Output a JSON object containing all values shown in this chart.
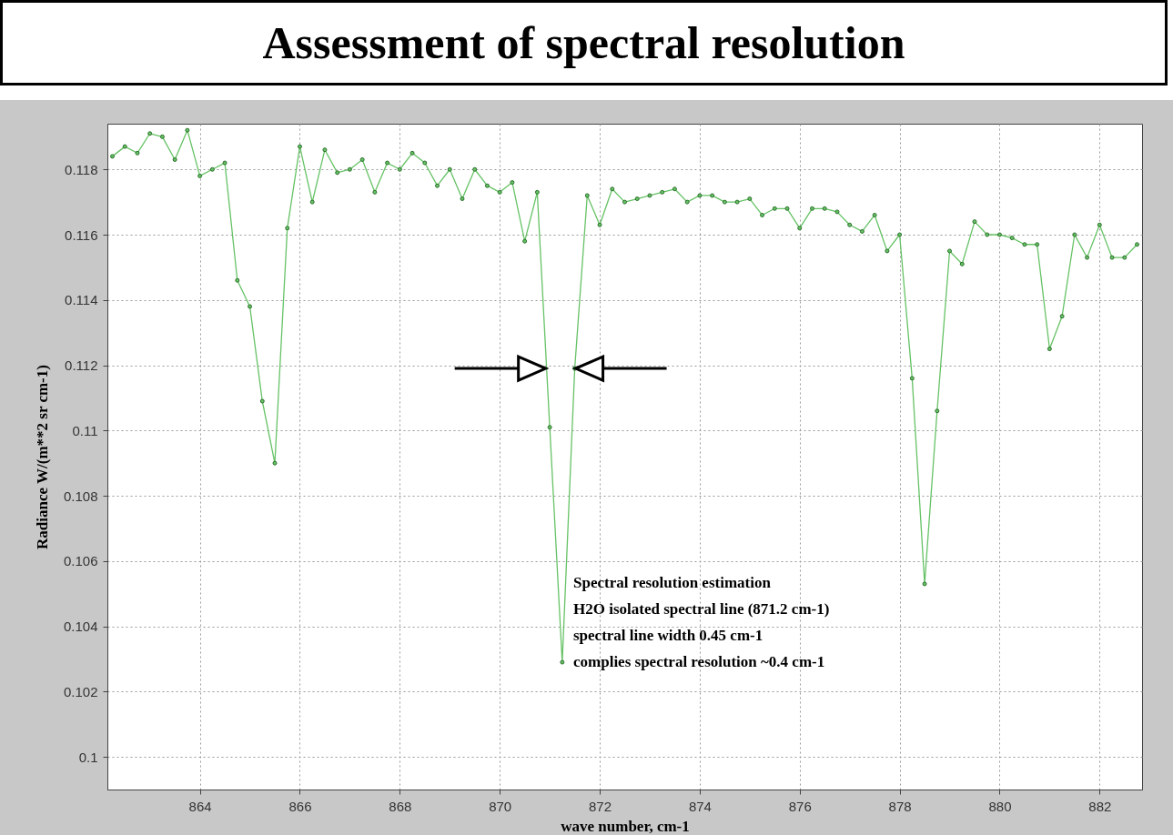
{
  "chart_data": {
    "type": "line",
    "title": "Assessment of spectral resolution",
    "xlabel": "wave number, cm-1",
    "ylabel": "Radiance W/(m**2 sr cm-1)",
    "x": [
      862.25,
      862.5,
      862.75,
      863,
      863.25,
      863.5,
      863.75,
      864,
      864.25,
      864.5,
      864.75,
      865,
      865.25,
      865.5,
      865.75,
      866,
      866.25,
      866.5,
      866.75,
      867,
      867.25,
      867.5,
      867.75,
      868,
      868.25,
      868.5,
      868.75,
      869,
      869.25,
      869.5,
      869.75,
      870,
      870.25,
      870.5,
      870.75,
      871,
      871.25,
      871.5,
      871.75,
      872,
      872.25,
      872.5,
      872.75,
      873,
      873.25,
      873.5,
      873.75,
      874,
      874.25,
      874.5,
      874.75,
      875,
      875.25,
      875.5,
      875.75,
      876,
      876.25,
      876.5,
      876.75,
      877,
      877.25,
      877.5,
      877.75,
      878,
      878.25,
      878.5,
      878.75,
      879,
      879.25,
      879.5,
      879.75,
      880,
      880.25,
      880.5,
      880.75,
      881,
      881.25,
      881.5,
      881.75,
      882,
      882.25,
      882.5,
      882.75
    ],
    "series": [
      {
        "color": "#66c266",
        "values": [
          0.1184,
          0.1187,
          0.1185,
          0.1191,
          0.119,
          0.1183,
          0.1192,
          0.1178,
          0.118,
          0.1182,
          0.1146,
          0.1138,
          0.1109,
          0.109,
          0.1162,
          0.1187,
          0.117,
          0.1186,
          0.1179,
          0.118,
          0.1183,
          0.1173,
          0.1182,
          0.118,
          0.1185,
          0.1182,
          0.1175,
          0.118,
          0.1171,
          0.118,
          0.1175,
          0.1173,
          0.1176,
          0.1158,
          0.1173,
          0.1101,
          0.1029,
          0.1119,
          0.1172,
          0.1163,
          0.1174,
          0.117,
          0.1171,
          0.1172,
          0.1173,
          0.1174,
          0.117,
          0.1172,
          0.1172,
          0.117,
          0.117,
          0.1171,
          0.1166,
          0.1168,
          0.1168,
          0.1162,
          0.1168,
          0.1168,
          0.1167,
          0.1163,
          0.1161,
          0.1166,
          0.1155,
          0.116,
          0.1116,
          0.1053,
          0.1106,
          0.1155,
          0.1151,
          0.1164,
          0.116,
          0.116,
          0.1159,
          0.1157,
          0.1157,
          0.1125,
          0.1135,
          0.116,
          0.1153,
          0.1163,
          0.1153,
          0.1153,
          0.1157
        ]
      }
    ],
    "xlim": [
      862.15,
      882.85
    ],
    "ylim": [
      0.099,
      0.1194
    ],
    "xticks": [
      864,
      866,
      868,
      870,
      872,
      874,
      876,
      878,
      880,
      882
    ],
    "yticks": [
      0.1,
      0.102,
      0.104,
      0.106,
      0.108,
      0.11,
      0.112,
      0.114,
      0.116,
      0.118
    ],
    "grid": true,
    "marker": "circle",
    "annotations": [
      "Spectral resolution estimation",
      "H2O isolated spectral line (871.2 cm-1)",
      "spectral line width 0.45 cm-1",
      "complies spectral resolution ~0.4 cm-1"
    ]
  }
}
